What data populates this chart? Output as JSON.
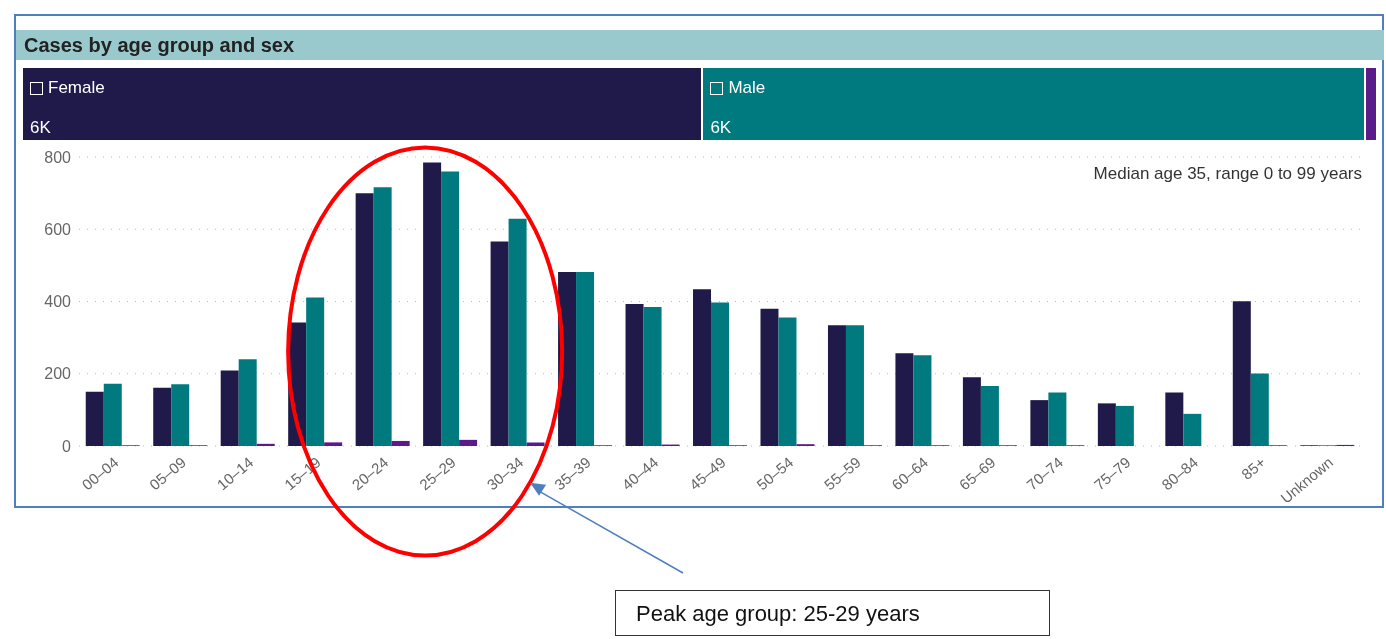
{
  "chart_data": {
    "type": "bar",
    "title": "Cases by age group and sex",
    "categories": [
      "00–04",
      "05–09",
      "10–14",
      "15–19",
      "20–24",
      "25–29",
      "30–34",
      "35–39",
      "40–44",
      "45–49",
      "50–54",
      "55–59",
      "60–64",
      "65–69",
      "70–74",
      "75–79",
      "80–84",
      "85+",
      "Unknown"
    ],
    "series": [
      {
        "name": "Female",
        "color": "#201a4a",
        "values": [
          150,
          161,
          209,
          342,
          700,
          785,
          566,
          482,
          393,
          434,
          380,
          334,
          257,
          190,
          127,
          118,
          148,
          401,
          2
        ]
      },
      {
        "name": "Male",
        "color": "#007a7e",
        "values": [
          172,
          171,
          240,
          411,
          716,
          760,
          629,
          482,
          385,
          397,
          356,
          334,
          251,
          166,
          148,
          111,
          89,
          201,
          2
        ]
      },
      {
        "color": "#5a1a8a",
        "values": [
          2,
          2,
          6,
          10,
          14,
          17,
          10,
          2,
          4,
          2,
          5,
          2,
          2,
          2,
          2,
          0,
          0,
          2,
          3
        ]
      }
    ],
    "ylim": [
      0,
      800
    ],
    "yticks": [
      0,
      200,
      400,
      600,
      800
    ],
    "grid": "y",
    "legend": "top",
    "annotations": [
      "6K",
      "6K",
      "Median age 35, range 0 to 99 years",
      "Peak age group: 25-29 years"
    ]
  }
}
